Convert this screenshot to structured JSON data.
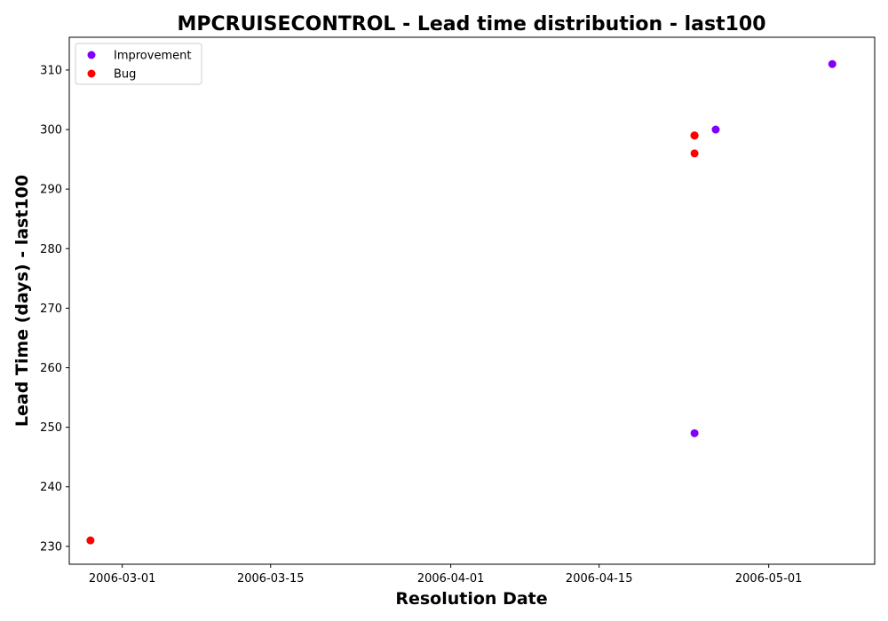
{
  "chart_data": {
    "type": "scatter",
    "title": "MPCRUISECONTROL - Lead time distribution - last100",
    "xlabel": "Resolution Date",
    "ylabel": "Lead Time (days) - last100",
    "x_axis_type": "date",
    "xlim": [
      "2006-02-24",
      "2006-05-11"
    ],
    "ylim": [
      227,
      315.5
    ],
    "x_ticks": [
      "2006-03-01",
      "2006-03-15",
      "2006-04-01",
      "2006-04-15",
      "2006-05-01"
    ],
    "y_ticks": [
      230,
      240,
      250,
      260,
      270,
      280,
      290,
      300,
      310
    ],
    "grid": false,
    "legend_position": "top-left",
    "series": [
      {
        "name": "Improvement",
        "color": "#8000ff",
        "points": [
          {
            "x": "2006-04-24",
            "y": 249
          },
          {
            "x": "2006-04-26",
            "y": 300
          },
          {
            "x": "2006-05-07",
            "y": 311
          }
        ]
      },
      {
        "name": "Bug",
        "color": "#ff0000",
        "points": [
          {
            "x": "2006-02-26",
            "y": 231
          },
          {
            "x": "2006-04-24",
            "y": 299
          },
          {
            "x": "2006-04-24",
            "y": 299
          },
          {
            "x": "2006-04-24",
            "y": 296
          },
          {
            "x": "2006-04-24",
            "y": 299
          }
        ]
      }
    ]
  }
}
